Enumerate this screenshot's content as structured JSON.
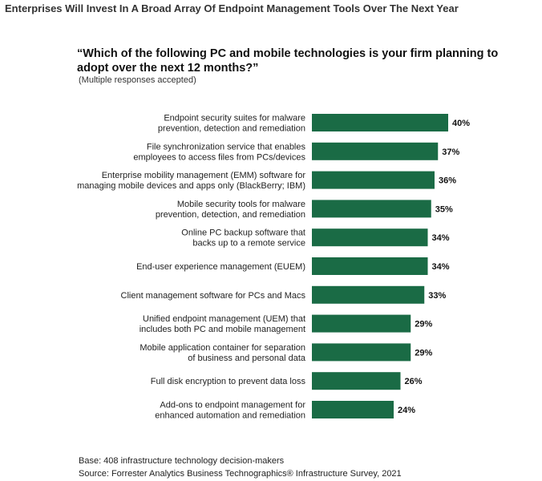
{
  "figure_title": "Enterprises Will Invest In A Broad Array Of Endpoint Management Tools Over The Next Year",
  "question": "“Which of the following PC and mobile technologies is your firm planning to adopt over the next 12 months?”",
  "note": "(Multiple responses accepted)",
  "base": "Base: 408 infrastructure technology decision-makers",
  "source": "Source: Forrester Analytics Business Technographics® Infrastructure Survey, 2021",
  "colors": {
    "bar": "#1a6b45"
  },
  "chart_data": {
    "type": "bar",
    "orientation": "horizontal",
    "categories": [
      [
        "Endpoint security suites for malware",
        "prevention, detection and remediation"
      ],
      [
        "File synchronization service that enables",
        "employees to access files from PCs/devices"
      ],
      [
        "Enterprise mobility management (EMM) software for",
        "managing mobile devices and apps only (BlackBerry; IBM)"
      ],
      [
        "Mobile security tools for malware",
        "prevention, detection, and remediation"
      ],
      [
        "Online PC backup software that",
        "backs up to a remote service"
      ],
      [
        "End-user experience management (EUEM)"
      ],
      [
        "Client management software for PCs and Macs"
      ],
      [
        "Unified endpoint management (UEM) that",
        "includes both PC and mobile management"
      ],
      [
        "Mobile application container for separation",
        "of business and personal data"
      ],
      [
        "Full disk encryption to prevent data loss"
      ],
      [
        "Add-ons to endpoint management for",
        "enhanced automation and remediation"
      ]
    ],
    "values": [
      40,
      37,
      36,
      35,
      34,
      34,
      33,
      29,
      29,
      26,
      24
    ],
    "value_labels": [
      "40%",
      "37%",
      "36%",
      "35%",
      "34%",
      "34%",
      "33%",
      "29%",
      "29%",
      "26%",
      "24%"
    ],
    "unit": "%",
    "grid": false,
    "legend": "none"
  }
}
